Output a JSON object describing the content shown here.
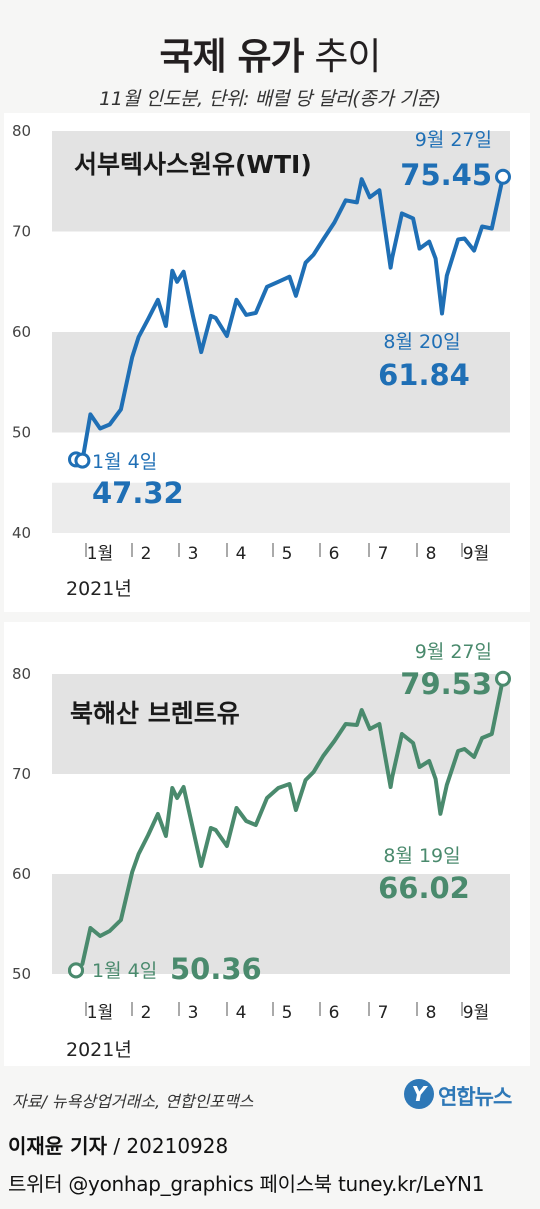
{
  "header": {
    "title_bold": "국제 유가",
    "title_light": "추이",
    "subtitle": "11월 인도분, 단위: 배럴 당 달러(종가 기준)"
  },
  "chart_data": [
    {
      "type": "line",
      "title": "서부텍사스원유(WTI)",
      "color": "#1f6fb5",
      "year_label": "2021년",
      "x_ticks": [
        "1월",
        "2",
        "3",
        "4",
        "5",
        "6",
        "7",
        "8",
        "9월"
      ],
      "y_ticks": [
        "40",
        "50",
        "60",
        "70",
        "80"
      ],
      "ylim": [
        40,
        80
      ],
      "x": [
        "1-4",
        "1-8",
        "1-13",
        "1-19",
        "1-25",
        "2-1",
        "2-8",
        "2-12",
        "2-18",
        "2-24",
        "3-1",
        "3-5",
        "3-8",
        "3-12",
        "3-18",
        "3-23",
        "3-29",
        "4-1",
        "4-8",
        "4-14",
        "4-20",
        "4-26",
        "5-3",
        "5-10",
        "5-17",
        "5-21",
        "5-27",
        "6-1",
        "6-7",
        "6-14",
        "6-21",
        "6-28",
        "7-1",
        "7-6",
        "7-12",
        "7-19",
        "7-20",
        "7-26",
        "8-2",
        "8-6",
        "8-12",
        "8-16",
        "8-20",
        "8-23",
        "8-30",
        "9-3",
        "9-9",
        "9-14",
        "9-20",
        "9-27"
      ],
      "values": [
        47.32,
        47.2,
        51.8,
        50.4,
        50.8,
        52.3,
        57.5,
        59.5,
        61.3,
        63.2,
        60.6,
        66.1,
        65.0,
        66.0,
        61.5,
        58.0,
        61.6,
        61.4,
        59.6,
        63.2,
        61.7,
        61.9,
        64.5,
        65.0,
        65.5,
        63.6,
        66.9,
        67.7,
        69.2,
        70.9,
        73.1,
        72.9,
        75.2,
        73.4,
        74.1,
        66.4,
        67.4,
        71.8,
        71.3,
        68.3,
        69.0,
        67.3,
        61.84,
        65.6,
        69.2,
        69.3,
        68.1,
        70.5,
        70.3,
        75.45
      ],
      "annotations": [
        {
          "date": "1월 4일",
          "value": "47.32"
        },
        {
          "date": "8월 20일",
          "value": "61.84"
        },
        {
          "date": "9월 27일",
          "value": "75.45"
        }
      ]
    },
    {
      "type": "line",
      "title": "북해산 브렌트유",
      "color": "#4a8a6d",
      "year_label": "2021년",
      "x_ticks": [
        "1월",
        "2",
        "3",
        "4",
        "5",
        "6",
        "7",
        "8",
        "9월"
      ],
      "y_ticks": [
        "50",
        "60",
        "70",
        "80"
      ],
      "ylim": [
        50,
        80
      ],
      "x": [
        "1-4",
        "1-8",
        "1-13",
        "1-19",
        "1-25",
        "2-1",
        "2-8",
        "2-12",
        "2-18",
        "2-24",
        "3-1",
        "3-5",
        "3-8",
        "3-12",
        "3-18",
        "3-23",
        "3-29",
        "4-1",
        "4-8",
        "4-14",
        "4-20",
        "4-26",
        "5-3",
        "5-10",
        "5-17",
        "5-21",
        "5-27",
        "6-1",
        "6-7",
        "6-14",
        "6-21",
        "6-28",
        "7-1",
        "7-6",
        "7-12",
        "7-19",
        "7-20",
        "7-26",
        "8-2",
        "8-6",
        "8-12",
        "8-16",
        "8-19",
        "8-23",
        "8-30",
        "9-3",
        "9-9",
        "9-14",
        "9-20",
        "9-27"
      ],
      "values": [
        50.36,
        51.0,
        54.6,
        53.8,
        54.3,
        55.4,
        60.2,
        62.0,
        63.9,
        66.0,
        63.8,
        68.6,
        67.6,
        68.7,
        64.4,
        60.8,
        64.6,
        64.4,
        62.8,
        66.6,
        65.3,
        64.9,
        67.6,
        68.6,
        69.0,
        66.4,
        69.4,
        70.2,
        71.8,
        73.3,
        75.0,
        74.9,
        76.4,
        74.5,
        75.0,
        68.7,
        69.7,
        74.0,
        73.1,
        70.7,
        71.3,
        69.5,
        66.02,
        68.9,
        72.3,
        72.5,
        71.7,
        73.6,
        74.0,
        79.53
      ],
      "annotations": [
        {
          "date": "1월 4일",
          "value": "50.36"
        },
        {
          "date": "8월 19일",
          "value": "66.02"
        },
        {
          "date": "9월 27일",
          "value": "79.53"
        }
      ]
    }
  ],
  "footer": {
    "source": "자료/ 뉴욕상업거래소, 연합인포맥스",
    "logo_mark": "Y",
    "logo_text": "연합뉴스",
    "byline_name": "이재윤 기자",
    "byline_date": " / 20210928",
    "social": "트위터 @yonhap_graphics  페이스북 tuney.kr/LeYN1"
  }
}
